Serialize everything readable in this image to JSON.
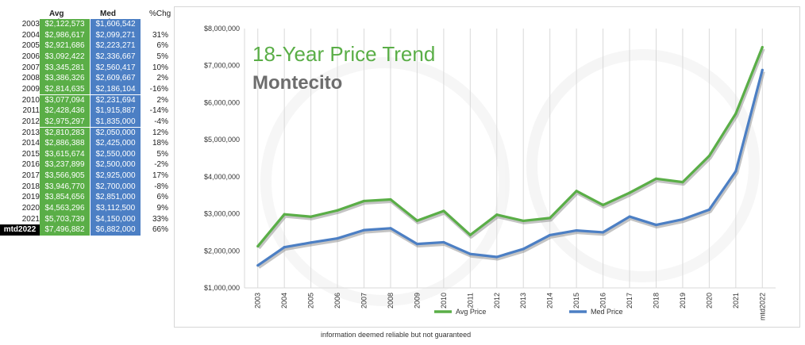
{
  "table": {
    "headers": {
      "avg": "Avg Price",
      "med": "Med Price",
      "pct": "%Chg"
    },
    "rows": [
      {
        "year": "2003",
        "avg": "$2,122,573",
        "med": "$1,606,542",
        "pct": ""
      },
      {
        "year": "2004",
        "avg": "$2,986,617",
        "med": "$2,099,271",
        "pct": "31%"
      },
      {
        "year": "2005",
        "avg": "$2,921,686",
        "med": "$2,223,271",
        "pct": "6%"
      },
      {
        "year": "2006",
        "avg": "$3,092,422",
        "med": "$2,336,667",
        "pct": "5%"
      },
      {
        "year": "2007",
        "avg": "$3,345,281",
        "med": "$2,560,417",
        "pct": "10%"
      },
      {
        "year": "2008",
        "avg": "$3,386,326",
        "med": "$2,609,667",
        "pct": "2%"
      },
      {
        "year": "2009",
        "avg": "$2,814,635",
        "med": "$2,186,104",
        "pct": "-16%"
      },
      {
        "year": "2010",
        "avg": "$3,077,094",
        "med": "$2,231,694",
        "pct": "2%"
      },
      {
        "year": "2011",
        "avg": "$2,428,436",
        "med": "$1,915,887",
        "pct": "-14%"
      },
      {
        "year": "2012",
        "avg": "$2,975,297",
        "med": "$1,835,000",
        "pct": "-4%"
      },
      {
        "year": "2013",
        "avg": "$2,810,283",
        "med": "$2,050,000",
        "pct": "12%"
      },
      {
        "year": "2014",
        "avg": "$2,886,388",
        "med": "$2,425,000",
        "pct": "18%"
      },
      {
        "year": "2015",
        "avg": "$3,615,674",
        "med": "$2,550,000",
        "pct": "5%"
      },
      {
        "year": "2016",
        "avg": "$3,237,899",
        "med": "$2,500,000",
        "pct": "-2%"
      },
      {
        "year": "2017",
        "avg": "$3,566,905",
        "med": "$2,925,000",
        "pct": "17%"
      },
      {
        "year": "2018",
        "avg": "$3,946,770",
        "med": "$2,700,000",
        "pct": "-8%"
      },
      {
        "year": "2019",
        "avg": "$3,854,656",
        "med": "$2,851,000",
        "pct": "6%"
      },
      {
        "year": "2020",
        "avg": "$4,563,296",
        "med": "$3,112,500",
        "pct": "9%"
      },
      {
        "year": "2021",
        "avg": "$5,703,739",
        "med": "$4,150,000",
        "pct": "33%"
      },
      {
        "year": "mtd2022",
        "avg": "$7,496,882",
        "med": "$6,882,000",
        "pct": "66%"
      }
    ]
  },
  "chart_data": {
    "type": "line",
    "title": "18-Year Price Trend",
    "subtitle": "Montecito",
    "categories": [
      "2003",
      "2004",
      "2005",
      "2006",
      "2007",
      "2008",
      "2009",
      "2010",
      "2011",
      "2012",
      "2013",
      "2014",
      "2015",
      "2016",
      "2017",
      "2018",
      "2019",
      "2020",
      "2021",
      "mtd2022"
    ],
    "series": [
      {
        "name": "Avg Price",
        "color": "#5aae47",
        "values": [
          2122573,
          2986617,
          2921686,
          3092422,
          3345281,
          3386326,
          2814635,
          3077094,
          2428436,
          2975297,
          2810283,
          2886388,
          3615674,
          3237899,
          3566905,
          3946770,
          3854656,
          4563296,
          5703739,
          7496882
        ]
      },
      {
        "name": "Med Price",
        "color": "#4c7fc4",
        "values": [
          1606542,
          2099271,
          2223271,
          2336667,
          2560417,
          2609667,
          2186104,
          2231694,
          1915887,
          1835000,
          2050000,
          2425000,
          2550000,
          2500000,
          2925000,
          2700000,
          2851000,
          3112500,
          4150000,
          6882000
        ]
      }
    ],
    "yticks": [
      "$1,000,000",
      "$2,000,000",
      "$3,000,000",
      "$4,000,000",
      "$5,000,000",
      "$6,000,000",
      "$7,000,000",
      "$8,000,000"
    ],
    "ylim": [
      1000000,
      8000000
    ],
    "grid": "vertical",
    "legend": "bottom",
    "colors": {
      "title": "#5aae47",
      "subtitle": "#6d6d6d",
      "axis": "#d9d9d9"
    }
  },
  "footer_note": "information deemed reliable but not guaranteed"
}
